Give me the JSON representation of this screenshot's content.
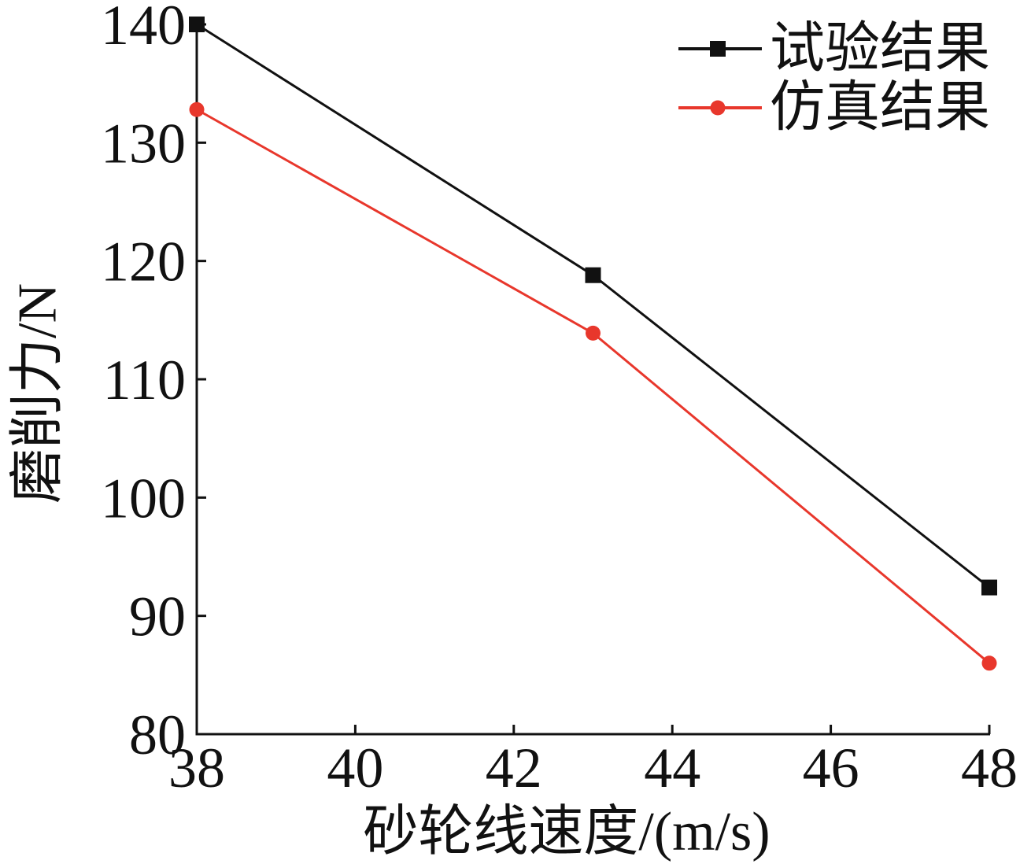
{
  "chart_data": {
    "type": "line",
    "x": [
      38,
      43,
      48
    ],
    "series": [
      {
        "name": "试验结果",
        "values": [
          140,
          118.8,
          92.4
        ],
        "color": "#111111",
        "marker": "square"
      },
      {
        "name": "仿真结果",
        "values": [
          132.8,
          113.9,
          86
        ],
        "color": "#e8372c",
        "marker": "circle"
      }
    ],
    "xlabel": "砂轮线速度/(m/s)",
    "ylabel": "磨削力/N",
    "xlim": [
      38,
      48
    ],
    "ylim": [
      80,
      140
    ],
    "xticks": [
      38,
      40,
      42,
      44,
      46,
      48
    ],
    "yticks": [
      80,
      90,
      100,
      110,
      120,
      130,
      140
    ],
    "legend": "top-right",
    "grid": false
  }
}
